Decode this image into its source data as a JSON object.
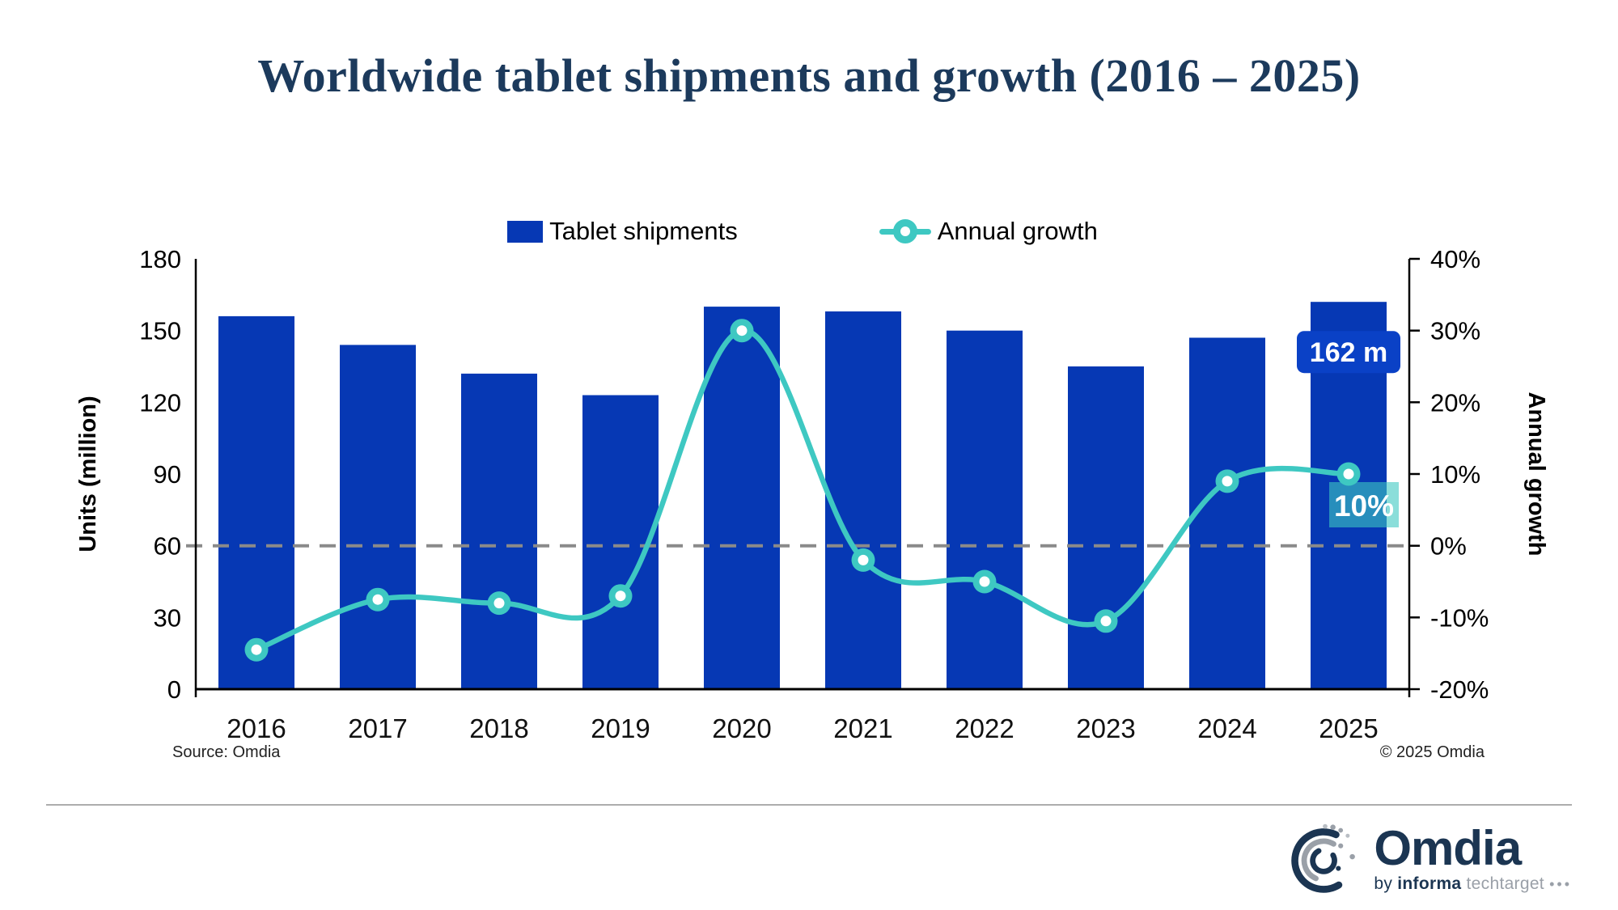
{
  "title": "Worldwide tablet shipments and growth (2016 – 2025)",
  "legend": {
    "shipments": "Tablet shipments",
    "growth": "Annual growth"
  },
  "footer": {
    "source": "Source: Omdia",
    "copyright": "© 2025 Omdia"
  },
  "logo": {
    "brand": "Omdia",
    "by": "by",
    "informa": "informa",
    "techtarget": "techtarget",
    "dots": "•••"
  },
  "colors": {
    "bar": "#0638B4",
    "bar_badge": "#0A41C6",
    "line": "#3EC8C2",
    "marker_center": "#FFFFFF",
    "growth_badge": "rgba(62,200,194,0.6)",
    "dashed_zero": "#8A8A8A",
    "axis": "#000000",
    "title": "#1C3A5C",
    "logo_navy": "#1B3552",
    "logo_gray": "#9AA0A8"
  },
  "chart_data": {
    "type": "bar+line combo",
    "categories": [
      "2016",
      "2017",
      "2018",
      "2019",
      "2020",
      "2021",
      "2022",
      "2023",
      "2024",
      "2025"
    ],
    "series": [
      {
        "name": "Tablet shipments",
        "type": "bar",
        "axis": "left",
        "unit": "million units",
        "values": [
          156,
          144,
          132,
          123,
          160,
          158,
          150,
          135,
          147,
          162
        ]
      },
      {
        "name": "Annual growth",
        "type": "line",
        "axis": "right",
        "unit": "percent",
        "values": [
          -14.5,
          -7.5,
          -8,
          -7,
          30,
          -2,
          -5,
          -10.5,
          9,
          10
        ]
      }
    ],
    "left_axis": {
      "label": "Units (million)",
      "min": 0,
      "max": 180,
      "step": 30,
      "tick_labels": [
        "0",
        "30",
        "60",
        "90",
        "120",
        "150",
        "180"
      ]
    },
    "right_axis": {
      "label": "Annual growth",
      "min": -20,
      "max": 40,
      "step": 10,
      "tick_labels": [
        "-20%",
        "-10%",
        "0%",
        "10%",
        "20%",
        "30%",
        "40%"
      ]
    },
    "zero_growth_line": {
      "style": "dashed",
      "at_percent": 0
    },
    "annotations": [
      {
        "target": "Tablet shipments 2025",
        "text": "162 m"
      },
      {
        "target": "Annual growth 2025",
        "text": "10%"
      }
    ],
    "legend_position": "top-center",
    "grid": "off"
  }
}
